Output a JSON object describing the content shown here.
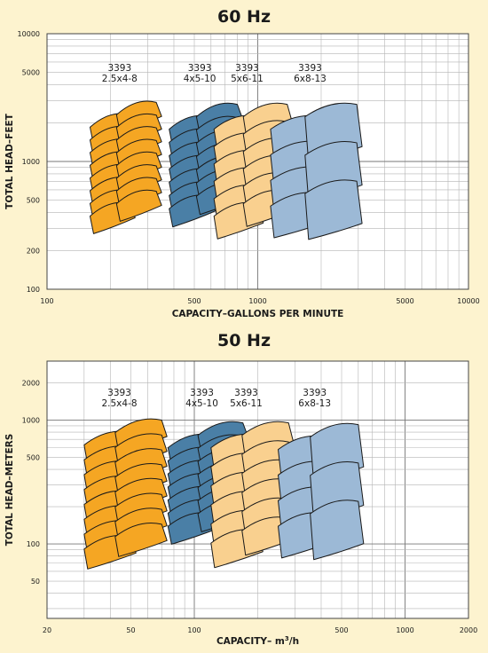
{
  "chart_data": [
    {
      "type": "area",
      "title": "60 Hz",
      "xlabel": "CAPACITY–GALLONS PER MINUTE",
      "ylabel": "TOTAL HEAD–FEET",
      "x_scale": "log",
      "y_scale": "log",
      "xlim": [
        100,
        10000
      ],
      "ylim": [
        100,
        10000
      ],
      "x_ticks": [
        100,
        500,
        1000,
        5000,
        10000
      ],
      "y_ticks": [
        100,
        200,
        500,
        1000,
        5000,
        10000
      ],
      "grid": true,
      "series": [
        {
          "name": "3393\n2.5x4-8",
          "model": "3393",
          "size": "2.5x4-8",
          "color": "#f5a623",
          "flow_range": [
            160,
            330
          ],
          "head_range": [
            350,
            2900
          ],
          "stages": 16
        },
        {
          "name": "3393\n4x5-10",
          "model": "3393",
          "size": "4x5-10",
          "color": "#4a7fa6",
          "flow_range": [
            380,
            800
          ],
          "head_range": [
            400,
            2800
          ],
          "stages": 14
        },
        {
          "name": "3393\n5x6-11",
          "model": "3393",
          "size": "5x6-11",
          "color": "#f9d08f",
          "flow_range": [
            620,
            1380
          ],
          "head_range": [
            350,
            2800
          ],
          "stages": 12
        },
        {
          "name": "3393\n6x8-13",
          "model": "3393",
          "size": "6x8-13",
          "color": "#9cb9d6",
          "flow_range": [
            1150,
            2950
          ],
          "head_range": [
            420,
            2800
          ],
          "stages": 7
        }
      ]
    },
    {
      "type": "area",
      "title": "50 Hz",
      "xlabel": "CAPACITY– m3/h",
      "ylabel": "TOTAL HEAD–METERS",
      "x_scale": "log",
      "y_scale": "log",
      "xlim": [
        20,
        2000
      ],
      "ylim": [
        25,
        3000
      ],
      "x_ticks": [
        20,
        50,
        100,
        500,
        1000,
        2000
      ],
      "y_ticks": [
        50,
        100,
        500,
        1000,
        2000
      ],
      "grid": true,
      "series": [
        {
          "name": "3393\n2.5x4-8",
          "model": "3393",
          "size": "2.5x4-8",
          "color": "#f5a623",
          "flow_range": [
            30,
            70
          ],
          "head_range": [
            85,
            1000
          ],
          "stages": 16
        },
        {
          "name": "3393\n4x5-10",
          "model": "3393",
          "size": "4x5-10",
          "color": "#4a7fa6",
          "flow_range": [
            75,
            170
          ],
          "head_range": [
            130,
            950
          ],
          "stages": 14
        },
        {
          "name": "3393\n5x6-11",
          "model": "3393",
          "size": "5x6-11",
          "color": "#f9d08f",
          "flow_range": [
            120,
            280
          ],
          "head_range": [
            95,
            950
          ],
          "stages": 12
        },
        {
          "name": "3393\n6x8-13",
          "model": "3393",
          "size": "6x8-13",
          "color": "#9cb9d6",
          "flow_range": [
            250,
            600
          ],
          "head_range": [
            130,
            920
          ],
          "stages": 7
        }
      ]
    }
  ]
}
